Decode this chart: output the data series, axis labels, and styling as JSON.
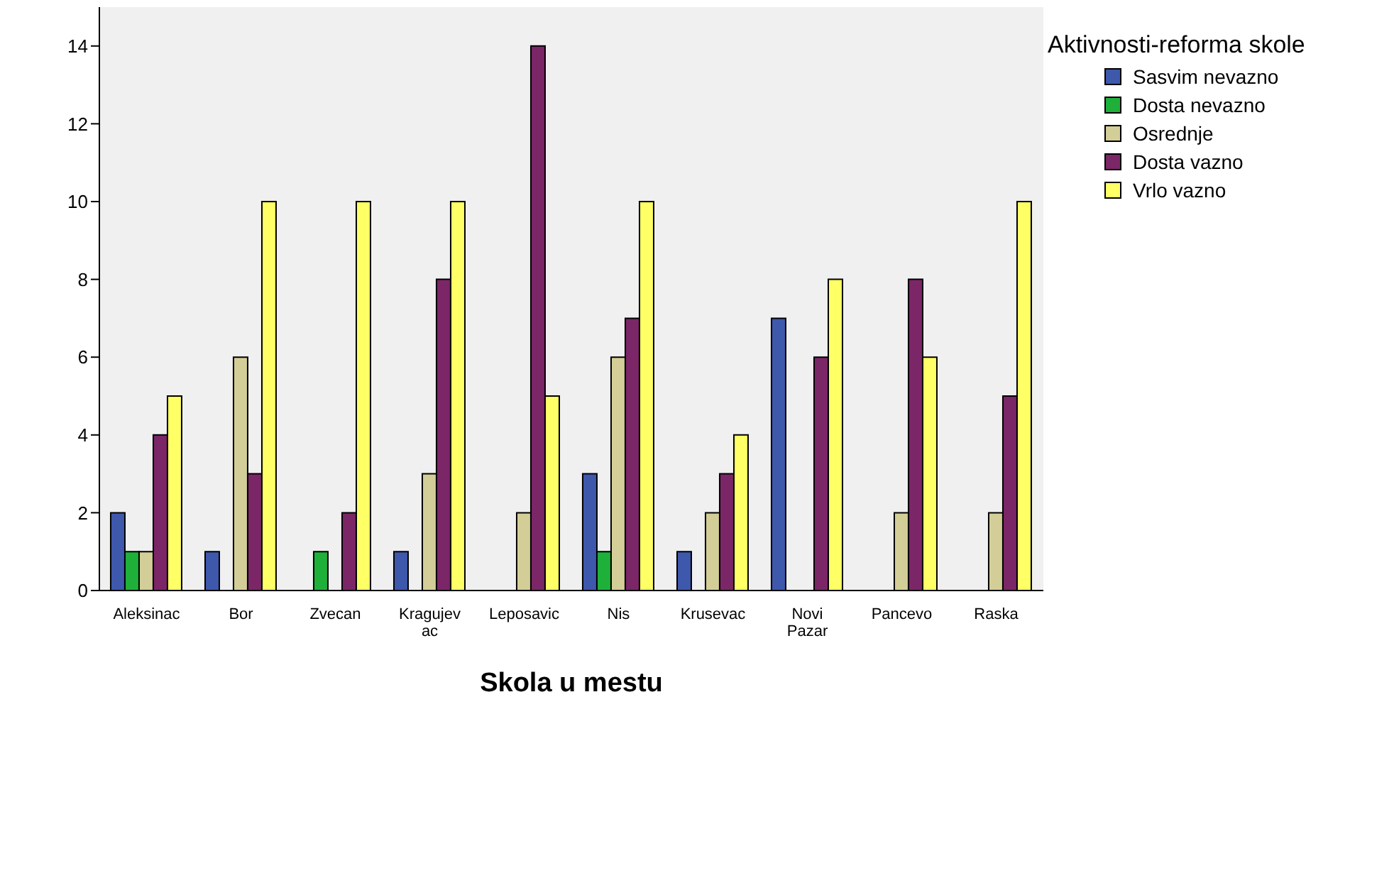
{
  "chart_data": {
    "type": "bar",
    "xlabel": "Skola u mestu",
    "legend_title": "Aktivnosti-reforma skole",
    "categories": [
      "Aleksinac",
      "Bor",
      "Zvecan",
      "Kragujevac",
      "Leposavic",
      "Nis",
      "Krusevac",
      "Novi Pazar",
      "Pancevo",
      "Raska"
    ],
    "series": [
      {
        "name": "Sasvim nevazno",
        "color": "#3e58ac",
        "values": [
          2,
          1,
          null,
          1,
          null,
          3,
          1,
          7,
          null,
          null
        ]
      },
      {
        "name": "Dosta nevazno",
        "color": "#1fb03a",
        "values": [
          1,
          null,
          1,
          null,
          null,
          1,
          null,
          null,
          null,
          null
        ]
      },
      {
        "name": "Osrednje",
        "color": "#d3ce97",
        "values": [
          1,
          6,
          null,
          3,
          2,
          6,
          2,
          null,
          2,
          2
        ]
      },
      {
        "name": "Dosta vazno",
        "color": "#7b2667",
        "values": [
          4,
          3,
          2,
          8,
          14,
          7,
          3,
          6,
          8,
          5
        ]
      },
      {
        "name": "Vrlo vazno",
        "color": "#ffff66",
        "values": [
          5,
          10,
          10,
          10,
          5,
          10,
          4,
          8,
          6,
          10
        ]
      }
    ],
    "ylim": [
      0,
      15
    ],
    "yticks": [
      0,
      2,
      4,
      6,
      8,
      10,
      12,
      14
    ],
    "legend": "top right"
  }
}
